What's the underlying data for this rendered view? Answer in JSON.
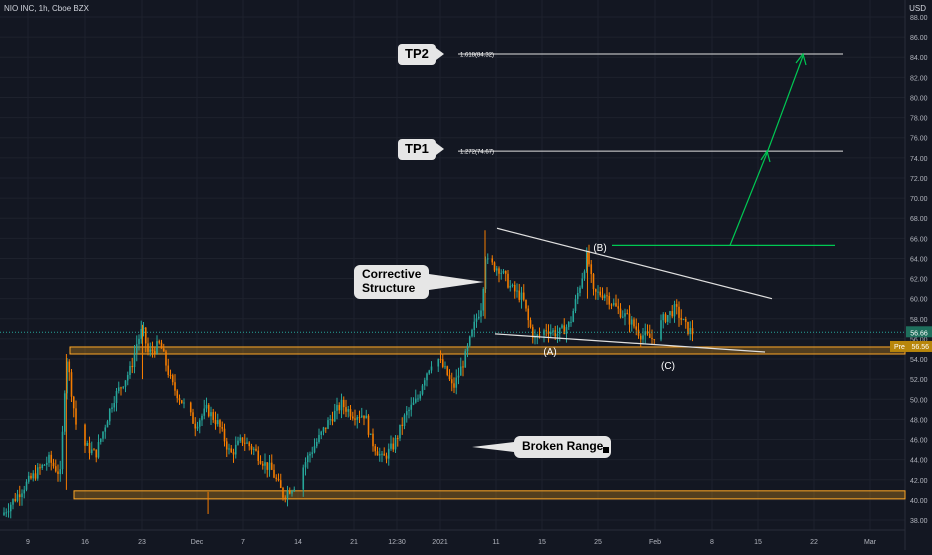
{
  "header": {
    "title": "NIO INC, 1h, Cboe BZX",
    "currency": "USD"
  },
  "colors": {
    "background": "#131722",
    "grid": "#1e222d",
    "up": "#26a69a",
    "down": "#f57c00",
    "axis_text": "#b2b5be",
    "white_line": "#e0e0e0",
    "green_line": "#00c853",
    "zone_fill": "#c8871a",
    "zone_border": "#ffa726",
    "price_tag": "#b8860b"
  },
  "chart_data": {
    "type": "candlestick",
    "ylim": [
      37,
      88
    ],
    "yticks": [
      "38.00",
      "40.00",
      "42.00",
      "44.00",
      "46.00",
      "48.00",
      "50.00",
      "52.00",
      "54.00",
      "56.00",
      "58.00",
      "60.00",
      "62.00",
      "64.00",
      "66.00",
      "68.00",
      "70.00",
      "72.00",
      "74.00",
      "76.00",
      "78.00",
      "80.00",
      "82.00",
      "84.00",
      "86.00",
      "88.00"
    ],
    "xticks": [
      "9",
      "16",
      "23",
      "Dec",
      "7",
      "14",
      "21",
      "12:30",
      "2021",
      "11",
      "15",
      "25",
      "Feb",
      "8",
      "15",
      "22",
      "Mar"
    ],
    "last_price_label": "56.66",
    "premarket_label": "Pre",
    "premarket_value": "56.56",
    "price_path": [
      [
        0,
        38.5
      ],
      [
        4,
        41.5
      ],
      [
        8,
        44.0
      ],
      [
        10,
        42.5
      ],
      [
        11,
        54.5
      ],
      [
        13,
        46.0
      ],
      [
        16,
        44.5
      ],
      [
        19,
        50.0
      ],
      [
        22,
        53.0
      ],
      [
        23,
        55.5
      ],
      [
        24,
        57.0
      ],
      [
        25,
        54.5
      ],
      [
        27,
        55.5
      ],
      [
        29,
        51.5
      ],
      [
        31,
        49.5
      ],
      [
        33,
        47.5
      ],
      [
        35,
        49.0
      ],
      [
        37,
        47.5
      ],
      [
        39,
        44.5
      ],
      [
        41,
        46.0
      ],
      [
        43,
        45.0
      ],
      [
        45,
        43.5
      ],
      [
        46,
        43.0
      ],
      [
        48,
        40.5
      ],
      [
        50,
        41.5
      ],
      [
        52,
        44.0
      ],
      [
        54,
        46.0
      ],
      [
        56,
        48.0
      ],
      [
        58,
        49.5
      ],
      [
        60,
        48.5
      ],
      [
        62,
        48.5
      ],
      [
        63,
        46.0
      ],
      [
        65,
        44.0
      ],
      [
        67,
        45.5
      ],
      [
        69,
        48.5
      ],
      [
        71,
        50.0
      ],
      [
        72,
        52.0
      ],
      [
        74,
        54.5
      ],
      [
        76,
        52.5
      ],
      [
        77,
        51.0
      ],
      [
        78,
        52.5
      ],
      [
        79,
        54.0
      ],
      [
        80,
        56.0
      ],
      [
        81,
        58.0
      ],
      [
        82,
        59.5
      ],
      [
        82.5,
        64.5
      ],
      [
        83,
        63.5
      ],
      [
        85,
        63.0
      ],
      [
        87,
        61.0
      ],
      [
        89,
        60.0
      ],
      [
        90,
        57.5
      ],
      [
        91,
        56.0
      ],
      [
        93,
        57.0
      ],
      [
        95,
        56.5
      ],
      [
        97,
        57.5
      ],
      [
        99,
        62.0
      ],
      [
        100,
        64.5
      ],
      [
        101,
        60.5
      ],
      [
        103,
        60.5
      ],
      [
        105,
        59.0
      ],
      [
        107,
        58.0
      ],
      [
        109,
        56.5
      ],
      [
        111,
        56.0
      ],
      [
        113,
        58.0
      ],
      [
        115,
        59.0
      ],
      [
        117,
        57.0
      ],
      [
        118,
        56.6
      ]
    ],
    "annotations": {
      "TP2": {
        "label": "TP2",
        "level_text": "1.618(84.32)",
        "value": 84.32
      },
      "TP1": {
        "label": "TP1",
        "level_text": "1.272(74.67)",
        "value": 74.67
      },
      "B_target_level": 65.3,
      "wave_labels": [
        "(A)",
        "(B)",
        "(C)"
      ],
      "callouts": [
        "Corrective",
        "Structure",
        "Broken Range"
      ],
      "resistance_zone": [
        54.5,
        55.2
      ],
      "support_zone": [
        40.1,
        40.9
      ]
    }
  }
}
